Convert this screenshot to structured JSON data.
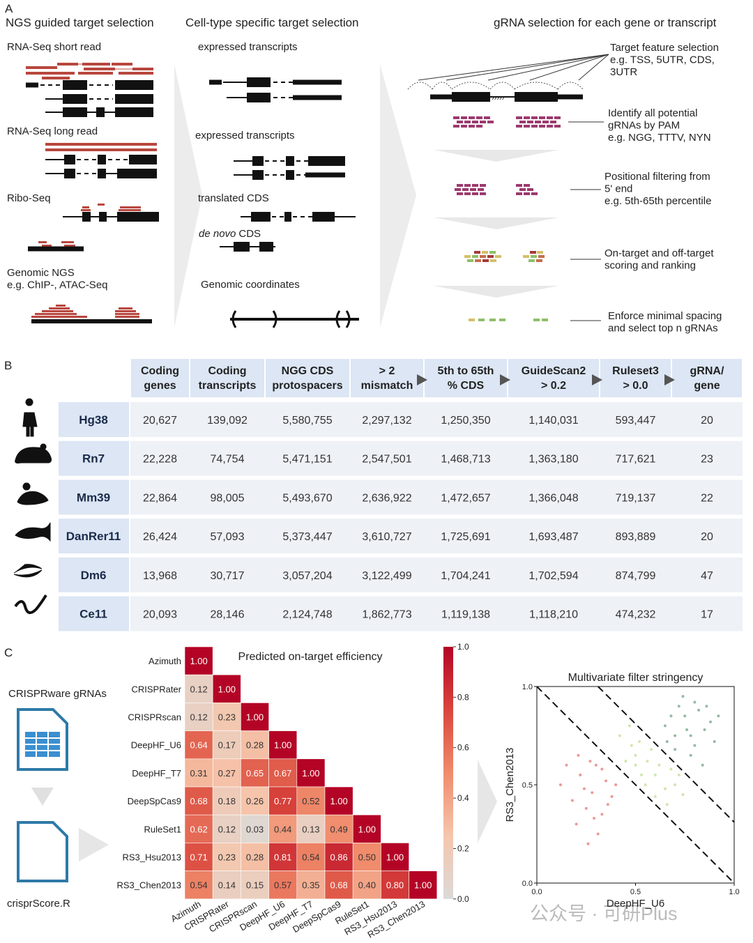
{
  "panel_labels": [
    "A",
    "B",
    "C"
  ],
  "panel_a": {
    "columns": [
      {
        "title": "NGS guided target selection",
        "labels": [
          [
            "RNA-Seq  short read"
          ],
          [
            "RNA-Seq long read"
          ],
          [
            "Ribo-Seq"
          ],
          [
            "Genomic NGS",
            "e.g. ChIP-, ATAC-Seq"
          ]
        ]
      },
      {
        "title": "Cell-type specific target selection",
        "labels": [
          [
            "expressed transcripts"
          ],
          [
            "expressed transcripts"
          ],
          [
            "translated CDS"
          ],
          [
            "de novo",
            "CDS"
          ],
          [
            "Genomic coordinates"
          ]
        ]
      },
      {
        "title": "gRNA selection for each gene or transcript",
        "labels": [
          [
            "Target feature selection",
            "e.g. TSS, 5UTR, CDS,",
            "3UTR"
          ],
          [
            "Identify all potential",
            "gRNAs by PAM",
            "e.g. NGG, TTTV, NYN"
          ],
          [
            "Positional filtering from",
            "5' end",
            "e.g. 5th-65th percentile"
          ],
          [
            "On-target and off-target",
            "scoring and ranking"
          ],
          [
            "Enforce minimal spacing",
            "and select top n gRNAs"
          ]
        ]
      }
    ]
  },
  "panel_b": {
    "header": [
      [
        "Coding",
        "genes"
      ],
      [
        "Coding",
        "transcripts"
      ],
      [
        "NGG CDS",
        "protospacers"
      ],
      [
        "> 2",
        "mismatch"
      ],
      [
        "5th to 65th",
        "% CDS"
      ],
      [
        "GuideScan2",
        "> 0.2"
      ],
      [
        "Ruleset3",
        "> 0.0"
      ],
      [
        "gRNA/",
        "gene"
      ]
    ],
    "rows": [
      {
        "organism": "Hg38",
        "cells": [
          "20,627",
          "139,092",
          "5,580,755",
          "2,297,132",
          "1,250,350",
          "1,140,031",
          "593,447",
          "20"
        ]
      },
      {
        "organism": "Rn7",
        "cells": [
          "22,228",
          "74,754",
          "5,471,151",
          "2,547,501",
          "1,468,713",
          "1,363,180",
          "717,621",
          "23"
        ]
      },
      {
        "organism": "Mm39",
        "cells": [
          "22,864",
          "98,005",
          "5,493,670",
          "2,636,922",
          "1,472,657",
          "1,366,048",
          "719,137",
          "22"
        ]
      },
      {
        "organism": "DanRer11",
        "cells": [
          "26,424",
          "57,093",
          "5,373,447",
          "3,610,727",
          "1,725,691",
          "1,693,487",
          "893,889",
          "20"
        ]
      },
      {
        "organism": "Dm6",
        "cells": [
          "13,968",
          "30,717",
          "3,057,204",
          "3,122,499",
          "1,704,241",
          "1,702,594",
          "874,799",
          "47"
        ]
      },
      {
        "organism": "Ce11",
        "cells": [
          "20,093",
          "28,146",
          "2,124,748",
          "1,862,773",
          "1,119,138",
          "1,118,210",
          "474,232",
          "17"
        ]
      }
    ]
  },
  "panel_c": {
    "input": "CRISPRware gRNAs",
    "tool": "crisprScore.R"
  },
  "chart_data": [
    {
      "type": "heatmap",
      "title": "Predicted on-target efficiency",
      "labels": [
        "Azimuth",
        "CRISPRater",
        "CRISPRscan",
        "DeepHF_U6",
        "DeepHF_T7",
        "DeepSpCas9",
        "RuleSet1",
        "RS3_Hsu2013",
        "RS3_Chen2013"
      ],
      "values": [
        [
          1
        ],
        [
          0.12,
          1
        ],
        [
          0.12,
          0.23,
          1
        ],
        [
          0.64,
          0.17,
          0.28,
          1
        ],
        [
          0.31,
          0.27,
          0.65,
          0.67,
          1
        ],
        [
          0.68,
          0.18,
          0.26,
          0.77,
          0.52,
          1
        ],
        [
          0.62,
          0.12,
          0.03,
          0.44,
          0.13,
          0.49,
          1
        ],
        [
          0.71,
          0.23,
          0.28,
          0.81,
          0.54,
          0.86,
          0.5,
          1
        ],
        [
          0.54,
          0.14,
          0.15,
          0.57,
          0.35,
          0.68,
          0.4,
          0.8,
          1
        ]
      ],
      "value_labels": [
        [
          "1.00"
        ],
        [
          "0.12",
          "1.00"
        ],
        [
          "0.12",
          "0.23",
          "1.00"
        ],
        [
          "0.64",
          "0.17",
          "0.28",
          "1.00"
        ],
        [
          "0.31",
          "0.27",
          "0.65",
          "0.67",
          "1.00"
        ],
        [
          "0.68",
          "0.18",
          "0.26",
          "0.77",
          "0.52",
          "1.00"
        ],
        [
          "0.62",
          "0.12",
          "0.03",
          "0.44",
          "0.13",
          "0.49",
          "1.00"
        ],
        [
          "0.71",
          "0.23",
          "0.28",
          "0.81",
          "0.54",
          "0.86",
          "0.50",
          "1.00"
        ],
        [
          "0.54",
          "0.14",
          "0.15",
          "0.57",
          "0.35",
          "0.68",
          "0.40",
          "0.80",
          "1.00"
        ]
      ],
      "clim": [
        0,
        1
      ],
      "colorbar_ticks": [
        {
          "value": 0,
          "label": "0.0"
        },
        0.2,
        0.4,
        0.6,
        0.8,
        {
          "value": 1,
          "label": "1.0"
        }
      ],
      "colors": [
        "#dcd9d7",
        "#f5c6ad",
        "#f08c6c",
        "#d9463c",
        "#b40426"
      ]
    },
    {
      "type": "scatter",
      "title": "Multivariate filter stringency",
      "xlabel": "DeepHF_U6",
      "ylabel": "RS3_Chen2013",
      "xlim": [
        0,
        1
      ],
      "ylim": [
        0,
        1
      ],
      "xticks": [
        {
          "value": 0,
          "label": "0.0"
        },
        0.5,
        {
          "value": 1,
          "label": "1.0"
        }
      ],
      "yticks": [
        {
          "value": 0,
          "label": "0.0"
        },
        0.5,
        {
          "value": 1,
          "label": "1.0"
        }
      ],
      "threshold_lines": [
        1,
        1.31
      ],
      "series": [
        {
          "color": "#e58080",
          "x": [
            0.12,
            0.18,
            0.22,
            0.25,
            0.28,
            0.3,
            0.33,
            0.35,
            0.38,
            0.2,
            0.27,
            0.31,
            0.15,
            0.24,
            0.36,
            0.4,
            0.29,
            0.21,
            0.33,
            0.26
          ],
          "values": [
            0.5,
            0.42,
            0.55,
            0.38,
            0.46,
            0.6,
            0.35,
            0.52,
            0.44,
            0.3,
            0.62,
            0.25,
            0.6,
            0.48,
            0.4,
            0.5,
            0.33,
            0.65,
            0.58,
            0.2
          ]
        },
        {
          "color": "#c4e09c",
          "x": [
            0.45,
            0.5,
            0.55,
            0.6,
            0.48,
            0.58,
            0.65,
            0.7,
            0.42,
            0.52,
            0.62,
            0.68,
            0.56,
            0.47,
            0.74,
            0.6,
            0.53,
            0.66,
            0.5,
            0.72
          ],
          "values": [
            0.62,
            0.6,
            0.5,
            0.55,
            0.7,
            0.68,
            0.48,
            0.5,
            0.75,
            0.72,
            0.6,
            0.58,
            0.62,
            0.8,
            0.45,
            0.44,
            0.55,
            0.4,
            0.65,
            0.55
          ]
        },
        {
          "color": "#7aaa8a",
          "x": [
            0.65,
            0.7,
            0.75,
            0.8,
            0.85,
            0.72,
            0.78,
            0.88,
            0.82,
            0.68,
            0.9,
            0.76,
            0.84,
            0.74,
            0.8,
            0.7,
            0.86,
            0.78,
            0.92,
            0.66
          ],
          "values": [
            0.8,
            0.75,
            0.85,
            0.7,
            0.78,
            0.9,
            0.65,
            0.82,
            0.88,
            0.85,
            0.72,
            0.78,
            0.6,
            0.95,
            0.92,
            0.68,
            0.9,
            0.75,
            0.85,
            0.72
          ]
        }
      ]
    }
  ],
  "watermark": "公众号 · 可研Plus"
}
